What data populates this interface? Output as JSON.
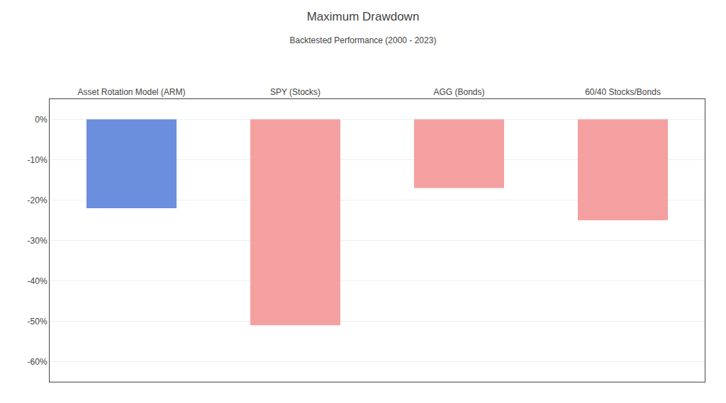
{
  "chart_data": {
    "type": "bar",
    "title": "Maximum Drawdown",
    "subtitle": "Backtested Performance (2000 - 2023)",
    "categories": [
      "Asset Rotation Model (ARM)",
      "SPY (Stocks)",
      "AGG (Bonds)",
      "60/40 Stocks/Bonds"
    ],
    "values": [
      -22.0,
      -51.0,
      -17.0,
      -25.0
    ],
    "colors": [
      "#6b8edd",
      "#f5a0a0",
      "#f5a0a0",
      "#f5a0a0"
    ],
    "ylim": [
      -65,
      5
    ],
    "yticks": [
      {
        "value": 0,
        "label": "0%"
      },
      {
        "value": -10,
        "label": "-10%"
      },
      {
        "value": -20,
        "label": "-20%"
      },
      {
        "value": -30,
        "label": "-30%"
      },
      {
        "value": -40,
        "label": "-40%"
      },
      {
        "value": -50,
        "label": "-50%"
      },
      {
        "value": -60,
        "label": "-60%"
      }
    ],
    "grid": true
  }
}
